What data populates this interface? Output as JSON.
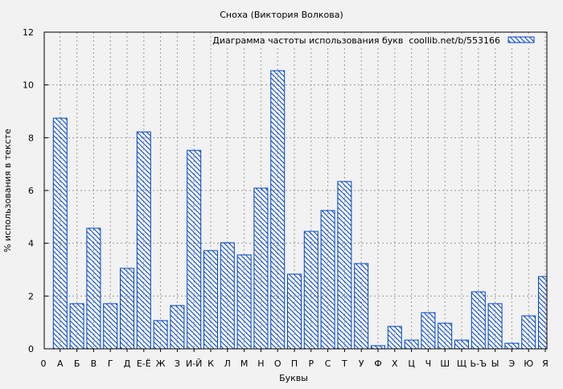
{
  "chart_data": {
    "type": "bar",
    "title": "Сноха (Виктория Волкова)",
    "xlabel": "Буквы",
    "ylabel": "% использования в тексте",
    "legend": {
      "label": "Диаграмма частоты использования букв  coollib.net/b/553166",
      "position": "top-right"
    },
    "x_origin_label": "0",
    "categories": [
      "А",
      "Б",
      "В",
      "Г",
      "Д",
      "Е-Ё",
      "Ж",
      "З",
      "И-Й",
      "К",
      "Л",
      "М",
      "Н",
      "О",
      "П",
      "Р",
      "С",
      "Т",
      "У",
      "Ф",
      "Х",
      "Ц",
      "Ч",
      "Ш",
      "Щ",
      "Ь-Ъ",
      "Ы",
      "Э",
      "Ю",
      "Я"
    ],
    "values": [
      8.74,
      1.71,
      4.57,
      1.71,
      3.05,
      8.22,
      1.07,
      1.64,
      7.52,
      3.72,
      4.02,
      3.56,
      6.09,
      10.54,
      2.83,
      4.45,
      5.24,
      6.34,
      3.23,
      0.12,
      0.85,
      0.33,
      1.37,
      0.97,
      0.33,
      2.16,
      1.71,
      0.21,
      1.25,
      2.74
    ],
    "ylim": [
      0,
      12
    ],
    "yticks": [
      "0",
      "2",
      "4",
      "6",
      "8",
      "10",
      "12"
    ],
    "grid": true,
    "bar_color": "#0046c8",
    "bar_pattern": "diagonal-hatch"
  }
}
